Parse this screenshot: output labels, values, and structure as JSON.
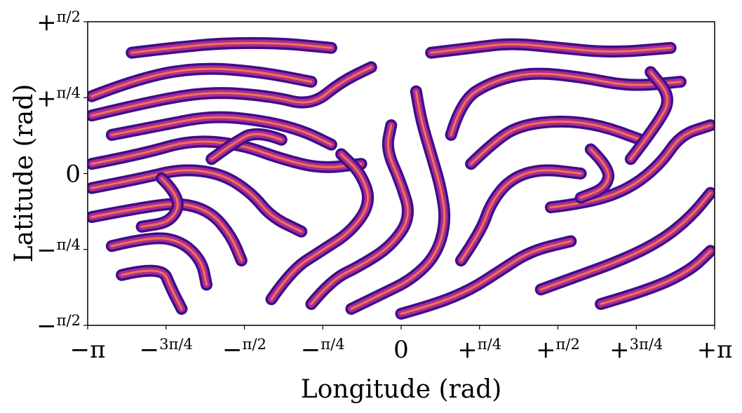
{
  "chart_data": {
    "type": "scatter",
    "title": "",
    "xlabel": "Longitude (rad)",
    "ylabel": "Latitude (rad)",
    "xlim": [
      -3.14159,
      3.14159
    ],
    "ylim": [
      -1.5708,
      1.5708
    ],
    "grid": false,
    "legend": "none",
    "colormap": "plasma",
    "colors": {
      "stripe_dark": "#3b0f8c",
      "stripe_mid": "#b12a90",
      "stripe_light": "#f58b45",
      "background": "#ffffff",
      "axes": "#000000"
    },
    "x_ticks": [
      {
        "value": -3.14159,
        "label": "−π"
      },
      {
        "value": -2.35619,
        "label": "−3π/4"
      },
      {
        "value": -1.5708,
        "label": "−π/2"
      },
      {
        "value": -0.7854,
        "label": "−π/4"
      },
      {
        "value": 0,
        "label": "0"
      },
      {
        "value": 0.7854,
        "label": "+π/4"
      },
      {
        "value": 1.5708,
        "label": "+π/2"
      },
      {
        "value": 2.35619,
        "label": "+3π/4"
      },
      {
        "value": 3.14159,
        "label": "+π"
      }
    ],
    "y_ticks": [
      {
        "value": 1.5708,
        "label": "+π/2"
      },
      {
        "value": 0.7854,
        "label": "+π/4"
      },
      {
        "value": 0,
        "label": "0"
      },
      {
        "value": -0.7854,
        "label": "−π/4"
      },
      {
        "value": -1.5708,
        "label": "−π/2"
      }
    ],
    "pattern": {
      "description": "labyrinthine stripe pattern",
      "stripes": [
        [
          [
            -3.1,
            0.8
          ],
          [
            -2.6,
            1.0
          ],
          [
            -2.0,
            1.1
          ],
          [
            -1.4,
            1.05
          ],
          [
            -0.9,
            0.95
          ]
        ],
        [
          [
            -3.1,
            0.6
          ],
          [
            -2.5,
            0.75
          ],
          [
            -1.9,
            0.85
          ],
          [
            -1.3,
            0.8
          ],
          [
            -0.9,
            0.7
          ],
          [
            -0.6,
            0.95
          ],
          [
            -0.3,
            1.1
          ]
        ],
        [
          [
            -2.9,
            0.4
          ],
          [
            -2.4,
            0.5
          ],
          [
            -1.9,
            0.6
          ],
          [
            -1.4,
            0.55
          ],
          [
            -1.0,
            0.45
          ],
          [
            -0.7,
            0.3
          ]
        ],
        [
          [
            -3.1,
            0.1
          ],
          [
            -2.6,
            0.2
          ],
          [
            -2.1,
            0.35
          ],
          [
            -1.6,
            0.3
          ],
          [
            -1.2,
            0.15
          ],
          [
            -0.8,
            0.05
          ],
          [
            -0.4,
            0.1
          ]
        ],
        [
          [
            -3.1,
            -0.15
          ],
          [
            -2.6,
            -0.05
          ],
          [
            -2.2,
            0.05
          ],
          [
            -1.8,
            0.0
          ],
          [
            -1.5,
            -0.2
          ],
          [
            -1.3,
            -0.45
          ],
          [
            -1.0,
            -0.6
          ]
        ],
        [
          [
            -3.1,
            -0.45
          ],
          [
            -2.6,
            -0.35
          ],
          [
            -2.2,
            -0.3
          ],
          [
            -1.9,
            -0.4
          ],
          [
            -1.7,
            -0.65
          ],
          [
            -1.6,
            -0.9
          ]
        ],
        [
          [
            -2.9,
            -0.75
          ],
          [
            -2.5,
            -0.65
          ],
          [
            -2.2,
            -0.7
          ],
          [
            -2.0,
            -0.9
          ],
          [
            -1.95,
            -1.15
          ]
        ],
        [
          [
            -2.8,
            -1.05
          ],
          [
            -2.4,
            -0.95
          ],
          [
            -2.3,
            -1.2
          ],
          [
            -2.2,
            -1.4
          ]
        ],
        [
          [
            -1.3,
            -1.3
          ],
          [
            -1.1,
            -1.0
          ],
          [
            -0.8,
            -0.8
          ],
          [
            -0.5,
            -0.6
          ],
          [
            -0.3,
            -0.3
          ],
          [
            -0.4,
            0.0
          ],
          [
            -0.6,
            0.2
          ]
        ],
        [
          [
            -0.9,
            -1.35
          ],
          [
            -0.7,
            -1.1
          ],
          [
            -0.4,
            -0.95
          ],
          [
            -0.1,
            -0.75
          ],
          [
            0.1,
            -0.45
          ],
          [
            0.0,
            -0.1
          ],
          [
            -0.15,
            0.25
          ],
          [
            -0.1,
            0.5
          ]
        ],
        [
          [
            -0.5,
            -1.4
          ],
          [
            -0.2,
            -1.25
          ],
          [
            0.1,
            -1.1
          ],
          [
            0.35,
            -0.85
          ],
          [
            0.45,
            -0.5
          ],
          [
            0.4,
            -0.15
          ],
          [
            0.3,
            0.2
          ],
          [
            0.2,
            0.55
          ],
          [
            0.15,
            0.85
          ]
        ],
        [
          [
            0.0,
            -1.45
          ],
          [
            0.35,
            -1.35
          ],
          [
            0.7,
            -1.2
          ],
          [
            1.0,
            -1.0
          ],
          [
            1.3,
            -0.8
          ],
          [
            1.7,
            -0.7
          ]
        ],
        [
          [
            0.6,
            -0.9
          ],
          [
            0.8,
            -0.6
          ],
          [
            0.9,
            -0.3
          ],
          [
            1.1,
            -0.05
          ],
          [
            1.4,
            0.05
          ],
          [
            1.8,
            0.0
          ]
        ],
        [
          [
            0.7,
            0.1
          ],
          [
            0.95,
            0.35
          ],
          [
            1.2,
            0.5
          ],
          [
            1.6,
            0.55
          ],
          [
            2.0,
            0.5
          ],
          [
            2.4,
            0.35
          ]
        ],
        [
          [
            0.5,
            0.4
          ],
          [
            0.6,
            0.75
          ],
          [
            0.9,
            0.95
          ],
          [
            1.3,
            1.05
          ],
          [
            1.8,
            1.0
          ],
          [
            2.3,
            0.9
          ],
          [
            2.8,
            0.95
          ]
        ],
        [
          [
            0.3,
            1.25
          ],
          [
            0.7,
            1.3
          ],
          [
            1.1,
            1.35
          ],
          [
            1.6,
            1.3
          ],
          [
            2.1,
            1.25
          ],
          [
            2.7,
            1.3
          ]
        ],
        [
          [
            1.5,
            -0.35
          ],
          [
            1.9,
            -0.3
          ],
          [
            2.3,
            -0.15
          ],
          [
            2.6,
            0.1
          ],
          [
            2.8,
            0.4
          ],
          [
            3.1,
            0.5
          ]
        ],
        [
          [
            1.4,
            -1.2
          ],
          [
            1.8,
            -1.05
          ],
          [
            2.2,
            -0.9
          ],
          [
            2.6,
            -0.7
          ],
          [
            2.9,
            -0.45
          ],
          [
            3.1,
            -0.2
          ]
        ],
        [
          [
            2.0,
            -1.35
          ],
          [
            2.5,
            -1.2
          ],
          [
            2.9,
            -1.0
          ],
          [
            3.1,
            -0.8
          ]
        ],
        [
          [
            2.3,
            0.15
          ],
          [
            2.6,
            0.55
          ],
          [
            2.7,
            0.8
          ],
          [
            2.5,
            1.05
          ]
        ],
        [
          [
            -2.7,
            1.25
          ],
          [
            -2.3,
            1.3
          ],
          [
            -1.8,
            1.35
          ],
          [
            -1.2,
            1.35
          ],
          [
            -0.7,
            1.3
          ]
        ],
        [
          [
            -2.4,
            -0.05
          ],
          [
            -2.2,
            -0.25
          ],
          [
            -2.3,
            -0.5
          ],
          [
            -2.6,
            -0.55
          ]
        ],
        [
          [
            -1.2,
            0.35
          ],
          [
            -1.45,
            0.45
          ],
          [
            -1.7,
            0.3
          ],
          [
            -1.9,
            0.15
          ]
        ],
        [
          [
            1.9,
            0.25
          ],
          [
            2.1,
            0.05
          ],
          [
            2.05,
            -0.15
          ],
          [
            1.8,
            -0.25
          ]
        ]
      ]
    }
  }
}
